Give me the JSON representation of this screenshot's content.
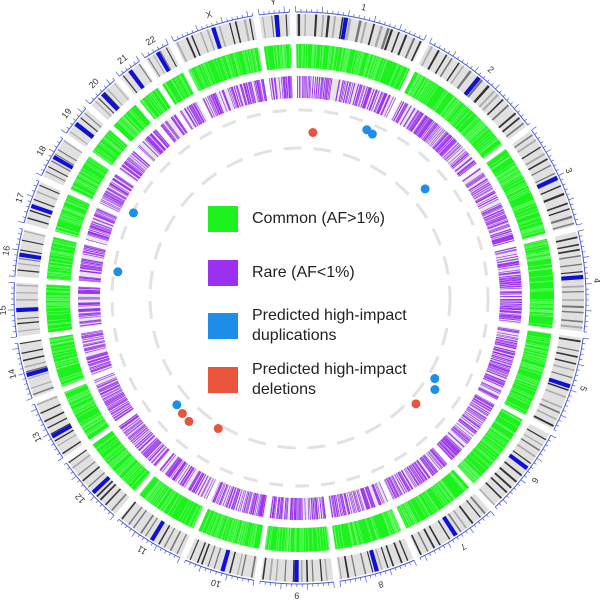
{
  "chromosomes": [
    {
      "name": "1",
      "size": 248
    },
    {
      "name": "2",
      "size": 242
    },
    {
      "name": "3",
      "size": 198
    },
    {
      "name": "4",
      "size": 190
    },
    {
      "name": "5",
      "size": 181
    },
    {
      "name": "6",
      "size": 171
    },
    {
      "name": "7",
      "size": 159
    },
    {
      "name": "8",
      "size": 145
    },
    {
      "name": "9",
      "size": 138
    },
    {
      "name": "10",
      "size": 134
    },
    {
      "name": "11",
      "size": 135
    },
    {
      "name": "12",
      "size": 133
    },
    {
      "name": "13",
      "size": 114
    },
    {
      "name": "14",
      "size": 107
    },
    {
      "name": "15",
      "size": 102
    },
    {
      "name": "16",
      "size": 90
    },
    {
      "name": "17",
      "size": 83
    },
    {
      "name": "18",
      "size": 80
    },
    {
      "name": "19",
      "size": 59
    },
    {
      "name": "20",
      "size": 64
    },
    {
      "name": "21",
      "size": 47
    },
    {
      "name": "22",
      "size": 51
    },
    {
      "name": "X",
      "size": 156
    },
    {
      "name": "Y",
      "size": 57
    }
  ],
  "legend": [
    {
      "label": "Common (AF>1%)",
      "color": "#1ef21e"
    },
    {
      "label": "Rare (AF<1%)",
      "color": "#9b30f0"
    },
    {
      "label": "Predicted high-impact duplications",
      "color": "#1e8ee8"
    },
    {
      "label": "Predicted high-impact deletions",
      "color": "#e8543c"
    }
  ],
  "colors": {
    "common": "#1ef21e",
    "common_band": "#7df97d",
    "rare": "#9b30f0",
    "rare_bg": "#e6e6e6",
    "duplication": "#1e8ee8",
    "deletion": "#e8543c",
    "ideogram_bg": "#e0e0e0",
    "band_dark": "#555555",
    "centromere": "#1010d8",
    "tick": "#4b5bd6",
    "guide": "#e2e2e2"
  },
  "duplications": [
    {
      "chrom": "1",
      "pos": 0.85,
      "track": 0.85
    },
    {
      "chrom": "1",
      "pos": 0.93,
      "track": 0.82
    },
    {
      "chrom": "2",
      "pos": 0.85,
      "track": 0.6
    },
    {
      "chrom": "6",
      "pos": 0.12,
      "track": 0.45
    },
    {
      "chrom": "6",
      "pos": 0.3,
      "track": 0.55
    },
    {
      "chrom": "12",
      "pos": 0.6,
      "track": 0.55
    },
    {
      "chrom": "16",
      "pos": 0.4,
      "track": 0.9
    },
    {
      "chrom": "18",
      "pos": 0.2,
      "track": 0.95
    }
  ],
  "deletions": [
    {
      "chrom": "1",
      "pos": 0.2,
      "track": 0.6
    },
    {
      "chrom": "6",
      "pos": 0.75,
      "track": 0.45
    },
    {
      "chrom": "11",
      "pos": 0.5,
      "track": 0.4
    },
    {
      "chrom": "12",
      "pos": 0.1,
      "track": 0.6
    },
    {
      "chrom": "12",
      "pos": 0.35,
      "track": 0.58
    }
  ]
}
